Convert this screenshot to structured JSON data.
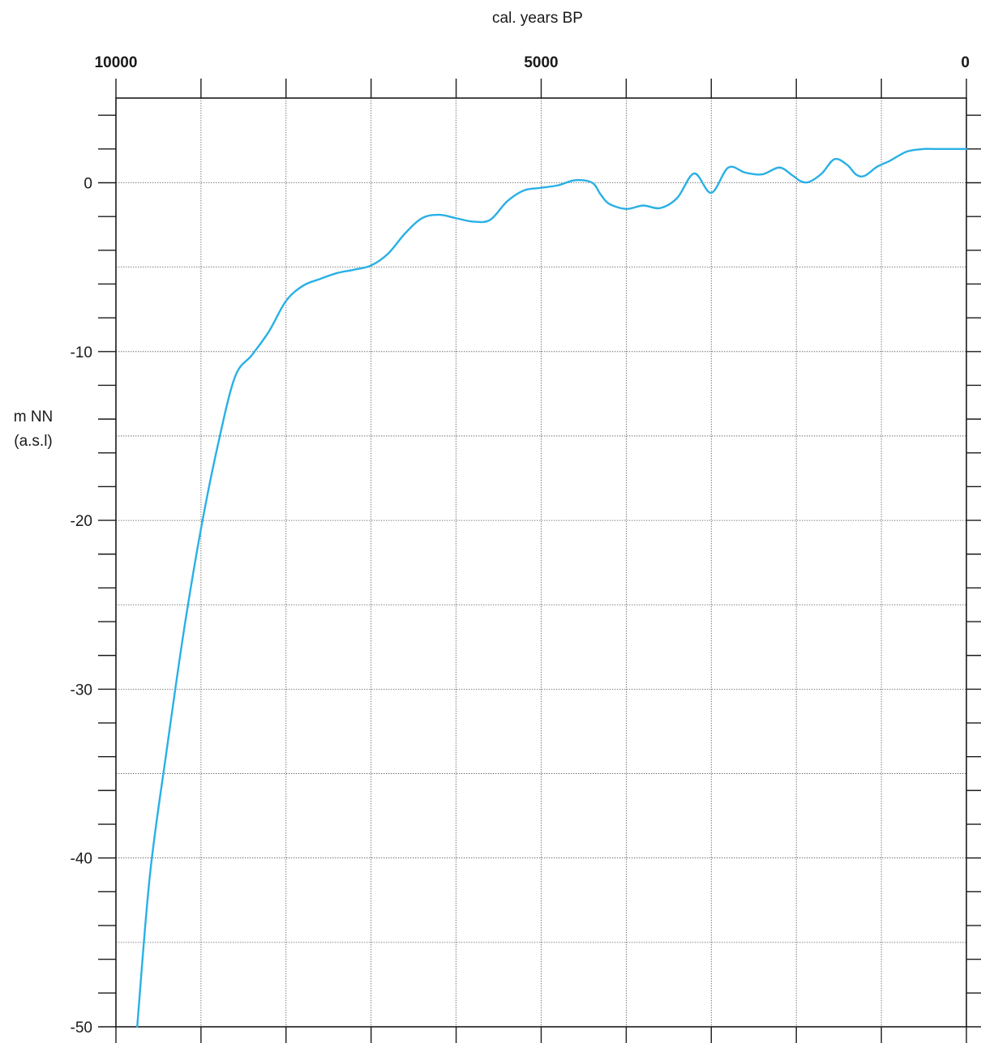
{
  "chart_data": {
    "type": "line",
    "title": "",
    "xlabel": "cal. years BP",
    "ylabel_line1": "m NN",
    "ylabel_line2": "(a.s.l)",
    "x_reversed": true,
    "xlim": [
      10000,
      0
    ],
    "ylim": [
      -50,
      5
    ],
    "x_tick_labels": [
      {
        "value": 10000,
        "label": "10000"
      },
      {
        "value": 5000,
        "label": "5000"
      },
      {
        "value": 0,
        "label": "0"
      }
    ],
    "x_grid_values": [
      9000,
      8000,
      7000,
      6000,
      5000,
      4000,
      3000,
      2000,
      1000
    ],
    "y_tick_labels": [
      {
        "value": 0,
        "label": "0"
      },
      {
        "value": -10,
        "label": "-10"
      },
      {
        "value": -20,
        "label": "-20"
      },
      {
        "value": -30,
        "label": "-30"
      },
      {
        "value": -40,
        "label": "-40"
      },
      {
        "value": -50,
        "label": "-50"
      }
    ],
    "y_grid_values": [
      0,
      -5,
      -10,
      -15,
      -20,
      -25,
      -30,
      -35,
      -40,
      -45
    ],
    "y_minor_ticks": [
      4,
      2,
      0,
      -2,
      -4,
      -6,
      -8,
      -10,
      -12,
      -14,
      -16,
      -18,
      -20,
      -22,
      -24,
      -26,
      -28,
      -30,
      -32,
      -34,
      -36,
      -38,
      -40,
      -42,
      -44,
      -46,
      -48,
      -50
    ],
    "grid": true,
    "colors": {
      "series": "#29b0e6",
      "axis": "#1a1a1a",
      "grid": "#555555"
    },
    "series": [
      {
        "x": [
          9750,
          9600,
          9400,
          9200,
          9000,
          8800,
          8600,
          8400,
          8200,
          8000,
          7800,
          7600,
          7400,
          7200,
          7000,
          6800,
          6600,
          6400,
          6200,
          6000,
          5800,
          5600,
          5400,
          5200,
          5000,
          4800,
          4600,
          4400,
          4300,
          4200,
          4000,
          3800,
          3600,
          3400,
          3200,
          3000,
          2800,
          2600,
          2400,
          2200,
          2050,
          1950,
          1850,
          1700,
          1550,
          1400,
          1300,
          1200,
          1050,
          900,
          700,
          500,
          400,
          300,
          200,
          100,
          0
        ],
        "y": [
          -50,
          -41,
          -33.5,
          -26.5,
          -20.5,
          -15.5,
          -11.5,
          -10.2,
          -8.8,
          -7,
          -6.1,
          -5.7,
          -5.35,
          -5.15,
          -4.9,
          -4.2,
          -3,
          -2.1,
          -1.9,
          -2.1,
          -2.3,
          -2.2,
          -1.1,
          -0.45,
          -0.3,
          -0.15,
          0.15,
          0,
          -0.7,
          -1.25,
          -1.55,
          -1.35,
          -1.5,
          -0.9,
          0.55,
          -0.6,
          0.9,
          0.6,
          0.5,
          0.9,
          0.45,
          0.1,
          0.05,
          0.55,
          1.4,
          1.05,
          0.5,
          0.4,
          0.95,
          1.3,
          1.85,
          2.0,
          2.0,
          2.0,
          2.0,
          2.0,
          2.0
        ]
      }
    ]
  }
}
